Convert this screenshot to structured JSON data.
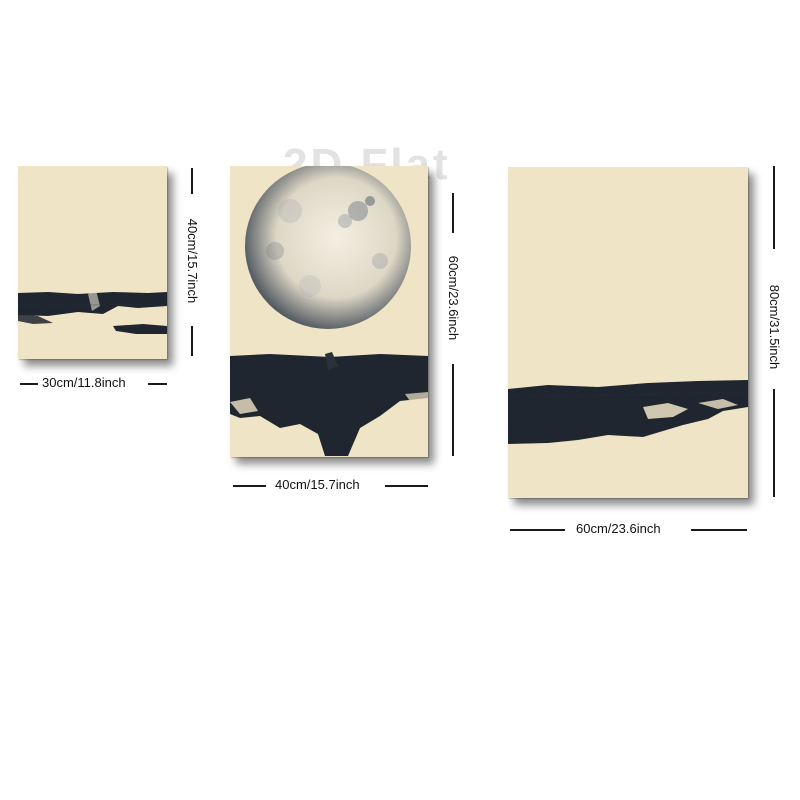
{
  "watermark": "2D Flat",
  "panels": [
    {
      "name": "small",
      "width_label": "30cm/11.8inch",
      "height_label": "40cm/15.7inch"
    },
    {
      "name": "medium",
      "width_label": "40cm/15.7inch",
      "height_label": "60cm/23.6inch"
    },
    {
      "name": "large",
      "width_label": "60cm/23.6inch",
      "height_label": "80cm/31.5inch"
    }
  ],
  "colors": {
    "canvas": "#efe4c6",
    "ink": "#1f2630",
    "moon": "#e9e3d0"
  }
}
